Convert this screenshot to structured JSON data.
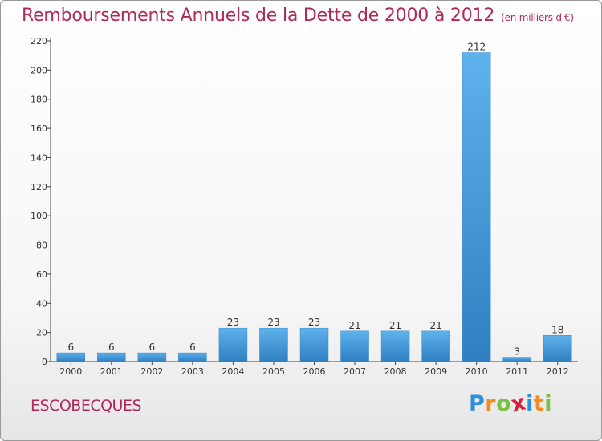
{
  "header": {
    "title": "Remboursements Annuels de la Dette de 2000 à 2012",
    "subtitle": "(en milliers d'€)"
  },
  "footer": {
    "commune": "ESCOBECQUES",
    "logo_letters": [
      "P",
      "r",
      "o",
      "x",
      "i",
      "t",
      "i"
    ],
    "logo_colors": [
      "#2e8fd8",
      "#f28c1e",
      "#7cc242",
      "#d8203a",
      "#2e8fd8",
      "#f28c1e",
      "#7cc242"
    ]
  },
  "chart_data": {
    "type": "bar",
    "categories": [
      "2000",
      "2001",
      "2002",
      "2003",
      "2004",
      "2005",
      "2006",
      "2007",
      "2008",
      "2009",
      "2010",
      "2011",
      "2012"
    ],
    "values": [
      6,
      6,
      6,
      6,
      23,
      23,
      23,
      21,
      21,
      21,
      212,
      3,
      18
    ],
    "ylim": [
      0,
      220
    ],
    "yticks": [
      0,
      20,
      40,
      60,
      80,
      100,
      120,
      140,
      160,
      180,
      200,
      220
    ],
    "grid": false,
    "bar_color": "#4a9be0"
  }
}
